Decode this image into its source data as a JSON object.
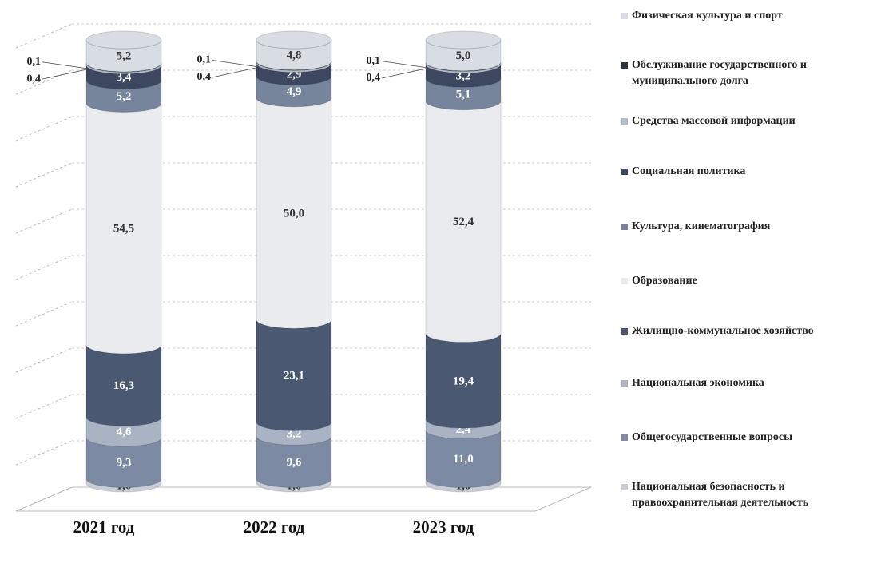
{
  "chart_data": {
    "type": "stacked_cylinder",
    "categories": [
      "2021 год",
      "2022 год",
      "2023 год"
    ],
    "series": [
      {
        "name": "Национальная безопасность и правоохранительная деятельность",
        "color": "#c9cdd6",
        "values": [
          1.0,
          1.0,
          1.0
        ],
        "value_labels": [
          "1,0",
          "1,0",
          "1,0"
        ]
      },
      {
        "name": "Общегосударственные вопросы",
        "color": "#7c8aa3",
        "values": [
          9.3,
          9.6,
          11.0
        ],
        "value_labels": [
          "9,3",
          "9,6",
          "11,0"
        ]
      },
      {
        "name": "Национальная экономика",
        "color": "#a9b3c4",
        "values": [
          4.6,
          3.2,
          2.4
        ],
        "value_labels": [
          "4,6",
          "3,2",
          "2,4"
        ]
      },
      {
        "name": "Жилищно-коммунальное хозяйство",
        "color": "#4b5872",
        "values": [
          16.3,
          23.1,
          19.4
        ],
        "value_labels": [
          "16,3",
          "23,1",
          "19,4"
        ]
      },
      {
        "name": "Образование",
        "color": "#e9ebef",
        "values": [
          54.5,
          50.0,
          52.4
        ],
        "value_labels": [
          "54,5",
          "50,0",
          "52,4"
        ]
      },
      {
        "name": "Культура, кинематография",
        "color": "#76849c",
        "values": [
          5.2,
          4.9,
          5.1
        ],
        "value_labels": [
          "5,2",
          "4,9",
          "5,1"
        ]
      },
      {
        "name": "Социальная политика",
        "color": "#3d4860",
        "values": [
          3.4,
          2.9,
          3.2
        ],
        "value_labels": [
          "3,4",
          "2,9",
          "3,2"
        ]
      },
      {
        "name": "Средства массовой информации",
        "color": "#b3bbc9",
        "values": [
          0.4,
          0.4,
          0.4
        ],
        "value_labels": [
          "0,4",
          "0,4",
          "0,4"
        ]
      },
      {
        "name": "Обслуживание государственного и муниципального долга",
        "color": "#2b3347",
        "values": [
          0.1,
          0.1,
          0.1
        ],
        "value_labels": [
          "0,1",
          "0,1",
          "0,1"
        ]
      },
      {
        "name": "Физическая культура и спорт",
        "color": "#d8dce3",
        "values": [
          5.2,
          4.8,
          5.0
        ],
        "value_labels": [
          "5,2",
          "4,8",
          "5,0"
        ]
      }
    ]
  }
}
